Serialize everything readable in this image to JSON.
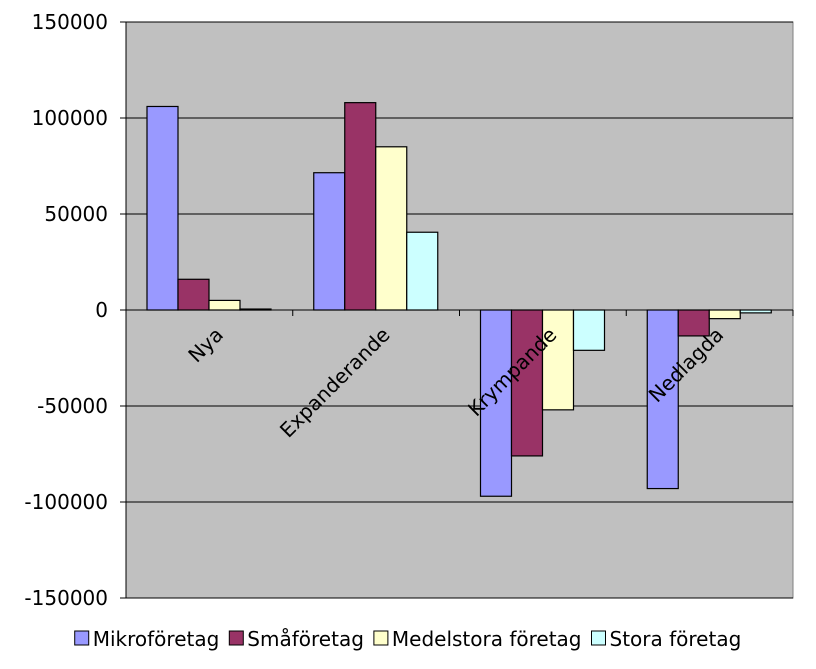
{
  "chart_data": {
    "type": "bar",
    "categories": [
      "Nya",
      "Expanderande",
      "Krympande",
      "Nedlagda"
    ],
    "series": [
      {
        "name": "Mikroföretag",
        "color": "#9999FF",
        "values": [
          106000,
          71500,
          -97000,
          -93000
        ]
      },
      {
        "name": "Småföretag",
        "color": "#993366",
        "values": [
          16000,
          108000,
          -76000,
          -13500
        ]
      },
      {
        "name": "Medelstora företag",
        "color": "#FFFFCC",
        "values": [
          5000,
          85000,
          -52000,
          -4500
        ]
      },
      {
        "name": "Stora företag",
        "color": "#CCFFFF",
        "values": [
          500,
          40500,
          -21000,
          -1500
        ]
      }
    ],
    "ylim": [
      -150000,
      150000
    ],
    "yticks": [
      150000,
      100000,
      50000,
      0,
      -50000,
      -100000,
      -150000
    ],
    "ytick_labels": [
      "150000",
      "100000",
      "50000",
      "0",
      "-50000",
      "-100000",
      "-150000"
    ],
    "grid": true,
    "plot_background": "#C0C0C0",
    "legend_position": "bottom"
  }
}
